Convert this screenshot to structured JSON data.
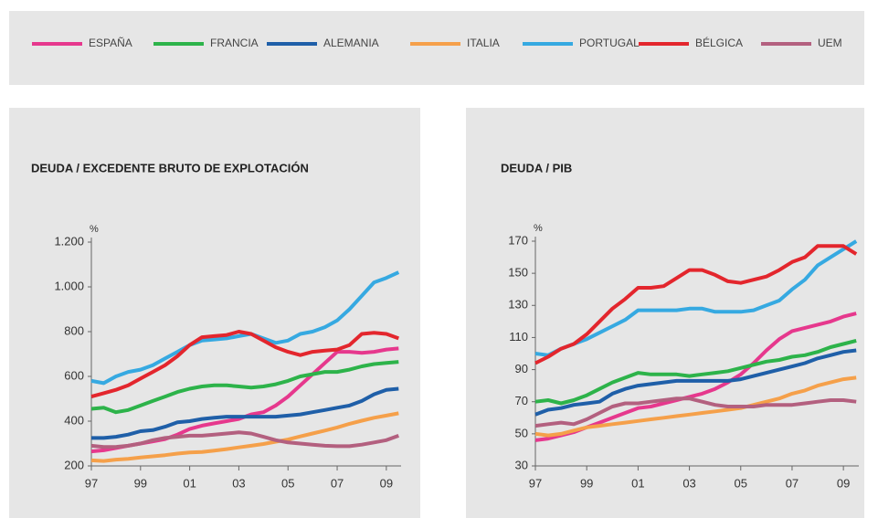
{
  "chart_data": [
    {
      "type": "line",
      "title": "DEUDA / EXCEDENTE BRUTO DE EXPLOTACIÓN",
      "y_unit": "%",
      "x": [
        1997,
        1997.5,
        1998,
        1998.5,
        1999,
        1999.5,
        2000,
        2000.5,
        2001,
        2001.5,
        2002,
        2002.5,
        2003,
        2003.5,
        2004,
        2004.5,
        2005,
        2005.5,
        2006,
        2006.5,
        2007,
        2007.5,
        2008,
        2008.5,
        2009,
        2009.5
      ],
      "xlim": [
        1997,
        2009.6
      ],
      "xticks": [
        {
          "value": 1997,
          "label": "97"
        },
        {
          "value": 1999,
          "label": "99"
        },
        {
          "value": 2001,
          "label": "01"
        },
        {
          "value": 2003,
          "label": "03"
        },
        {
          "value": 2005,
          "label": "05"
        },
        {
          "value": 2007,
          "label": "07"
        },
        {
          "value": 2009,
          "label": "09"
        }
      ],
      "ylim": [
        200,
        1200
      ],
      "yticks": [
        200,
        400,
        600,
        800,
        {
          "value": 1000,
          "label": "1.000"
        },
        {
          "value": 1200,
          "label": "1.200"
        }
      ],
      "series": [
        {
          "name": "ESPAÑA",
          "color": "#e6388d",
          "values": [
            265,
            270,
            280,
            290,
            300,
            310,
            320,
            340,
            365,
            380,
            390,
            400,
            410,
            430,
            440,
            470,
            510,
            560,
            610,
            660,
            710,
            710,
            705,
            710,
            720,
            725
          ]
        },
        {
          "name": "FRANCIA",
          "color": "#2db34a",
          "values": [
            455,
            460,
            440,
            450,
            470,
            490,
            510,
            530,
            545,
            555,
            560,
            560,
            555,
            550,
            555,
            565,
            580,
            600,
            610,
            620,
            620,
            630,
            645,
            655,
            660,
            665
          ]
        },
        {
          "name": "ALEMANIA",
          "color": "#1f5fa8",
          "values": [
            325,
            325,
            330,
            340,
            355,
            360,
            375,
            395,
            400,
            410,
            415,
            420,
            420,
            420,
            420,
            420,
            425,
            430,
            440,
            450,
            460,
            470,
            490,
            520,
            540,
            545
          ]
        },
        {
          "name": "ITALIA",
          "color": "#f5a04a",
          "values": [
            225,
            222,
            228,
            232,
            238,
            243,
            248,
            255,
            260,
            262,
            268,
            275,
            283,
            290,
            298,
            308,
            318,
            332,
            345,
            358,
            372,
            388,
            402,
            415,
            425,
            435
          ]
        },
        {
          "name": "PORTUGAL",
          "color": "#36a9e1",
          "values": [
            580,
            570,
            600,
            620,
            630,
            650,
            680,
            710,
            740,
            760,
            765,
            770,
            780,
            790,
            770,
            750,
            760,
            790,
            800,
            820,
            850,
            900,
            960,
            1020,
            1040,
            1065
          ]
        },
        {
          "name": "BÉLGICA",
          "color": "#e3262d",
          "values": [
            510,
            525,
            540,
            560,
            590,
            620,
            650,
            690,
            740,
            775,
            780,
            785,
            800,
            790,
            760,
            730,
            710,
            695,
            710,
            715,
            720,
            740,
            790,
            795,
            790,
            770
          ]
        },
        {
          "name": "UEM",
          "color": "#b3607f",
          "values": [
            290,
            285,
            285,
            290,
            300,
            315,
            325,
            330,
            335,
            335,
            340,
            345,
            350,
            345,
            330,
            315,
            305,
            300,
            295,
            290,
            288,
            288,
            295,
            305,
            315,
            335
          ]
        }
      ]
    },
    {
      "type": "line",
      "title": "DEUDA / PIB",
      "y_unit": "%",
      "x": [
        1997,
        1997.5,
        1998,
        1998.5,
        1999,
        1999.5,
        2000,
        2000.5,
        2001,
        2001.5,
        2002,
        2002.5,
        2003,
        2003.5,
        2004,
        2004.5,
        2005,
        2005.5,
        2006,
        2006.5,
        2007,
        2007.5,
        2008,
        2008.5,
        2009,
        2009.5
      ],
      "xlim": [
        1997,
        2009.6
      ],
      "xticks": [
        {
          "value": 1997,
          "label": "97"
        },
        {
          "value": 1999,
          "label": "99"
        },
        {
          "value": 2001,
          "label": "01"
        },
        {
          "value": 2003,
          "label": "03"
        },
        {
          "value": 2005,
          "label": "05"
        },
        {
          "value": 2007,
          "label": "07"
        },
        {
          "value": 2009,
          "label": "09"
        }
      ],
      "ylim": [
        30,
        170
      ],
      "yticks": [
        30,
        50,
        70,
        90,
        110,
        130,
        150,
        170
      ],
      "series": [
        {
          "name": "ESPAÑA",
          "color": "#e6388d",
          "values": [
            46,
            47,
            49,
            51,
            54,
            57,
            60,
            63,
            66,
            67,
            69,
            71,
            73,
            75,
            78,
            82,
            87,
            94,
            102,
            109,
            114,
            116,
            118,
            120,
            123,
            125
          ]
        },
        {
          "name": "FRANCIA",
          "color": "#2db34a",
          "values": [
            70,
            71,
            69,
            71,
            74,
            78,
            82,
            85,
            88,
            87,
            87,
            87,
            86,
            87,
            88,
            89,
            91,
            93,
            95,
            96,
            98,
            99,
            101,
            104,
            106,
            108
          ]
        },
        {
          "name": "ALEMANIA",
          "color": "#1f5fa8",
          "values": [
            62,
            65,
            66,
            68,
            69,
            70,
            75,
            78,
            80,
            81,
            82,
            83,
            83,
            83,
            83,
            83,
            84,
            86,
            88,
            90,
            92,
            94,
            97,
            99,
            101,
            102
          ]
        },
        {
          "name": "ITALIA",
          "color": "#f5a04a",
          "values": [
            50,
            49,
            50,
            52,
            54,
            55,
            56,
            57,
            58,
            59,
            60,
            61,
            62,
            63,
            64,
            65,
            66,
            68,
            70,
            72,
            75,
            77,
            80,
            82,
            84,
            85
          ]
        },
        {
          "name": "PORTUGAL",
          "color": "#36a9e1",
          "values": [
            100,
            99,
            103,
            106,
            109,
            113,
            117,
            121,
            127,
            127,
            127,
            127,
            128,
            128,
            126,
            126,
            126,
            127,
            130,
            133,
            140,
            146,
            155,
            160,
            165,
            170
          ]
        },
        {
          "name": "BÉLGICA",
          "color": "#e3262d",
          "values": [
            94,
            98,
            103,
            106,
            112,
            120,
            128,
            134,
            141,
            141,
            142,
            147,
            152,
            152,
            149,
            145,
            144,
            146,
            148,
            152,
            157,
            160,
            167,
            167,
            167,
            162
          ]
        },
        {
          "name": "UEM",
          "color": "#b3607f",
          "values": [
            55,
            56,
            57,
            56,
            59,
            63,
            67,
            69,
            69,
            70,
            71,
            72,
            72,
            70,
            68,
            67,
            67,
            67,
            68,
            68,
            68,
            69,
            70,
            71,
            71,
            70
          ]
        }
      ]
    }
  ]
}
